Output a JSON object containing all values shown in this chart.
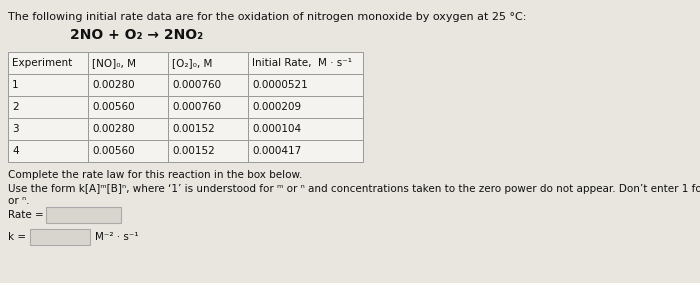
{
  "title": "The following initial rate data are for the oxidation of nitrogen monoxide by oxygen at 25 °C:",
  "reaction": "2NO + O₂ → 2NO₂",
  "table_headers": [
    "Experiment",
    "[NO]₀, M",
    "[O₂]₀, M",
    "Initial Rate,  M · s⁻¹"
  ],
  "table_rows": [
    [
      "1",
      "0.00280",
      "0.000760",
      "0.0000521"
    ],
    [
      "2",
      "0.00560",
      "0.000760",
      "0.000209"
    ],
    [
      "3",
      "0.00280",
      "0.00152",
      "0.000104"
    ],
    [
      "4",
      "0.00560",
      "0.00152",
      "0.000417"
    ]
  ],
  "instruction1": "Complete the rate law for this reaction in the box below.",
  "rate_label": "Rate =",
  "k_label": "k =",
  "k_units": "M⁻² · s⁻¹",
  "bg_color": "#e9e6e0",
  "table_bg": "#f5f3ef",
  "table_border": "#999999",
  "input_box_bg": "#d8d5cf",
  "input_box_border": "#aaaaaa",
  "text_color": "#111111"
}
